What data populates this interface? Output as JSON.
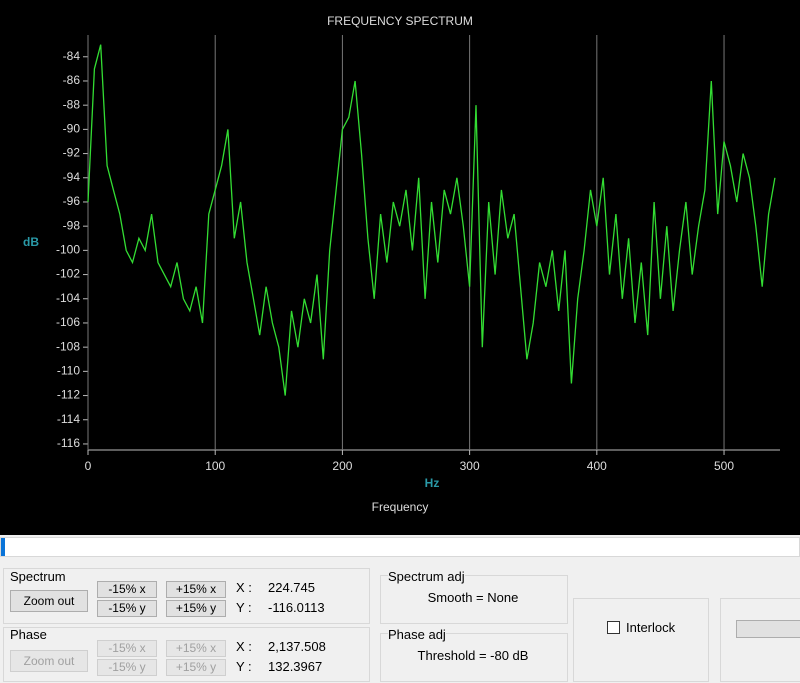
{
  "chart_data": {
    "type": "line",
    "title": "FREQUENCY SPECTRUM",
    "x_label": "Hz",
    "x_title": "Frequency",
    "y_label": "dB",
    "color": "#33dd33",
    "grid": true,
    "xlim": [
      0,
      544
    ],
    "xticks": [
      0,
      100,
      200,
      300,
      400,
      500
    ],
    "ylim": [
      -116.5,
      -82.2
    ],
    "yticks": [
      -84,
      -86,
      -88,
      -90,
      -92,
      -94,
      -96,
      -98,
      -100,
      -102,
      -104,
      -106,
      -108,
      -110,
      -112,
      -114,
      -116
    ],
    "x": [
      0,
      5,
      10,
      15,
      20,
      25,
      30,
      35,
      40,
      45,
      50,
      55,
      60,
      65,
      70,
      75,
      80,
      85,
      90,
      95,
      100,
      105,
      110,
      115,
      120,
      125,
      130,
      135,
      140,
      145,
      150,
      155,
      160,
      165,
      170,
      175,
      180,
      185,
      190,
      195,
      200,
      205,
      210,
      215,
      220,
      225,
      230,
      235,
      240,
      245,
      250,
      255,
      260,
      265,
      270,
      275,
      280,
      285,
      290,
      295,
      300,
      305,
      310,
      315,
      320,
      325,
      330,
      335,
      340,
      345,
      350,
      355,
      360,
      365,
      370,
      375,
      380,
      385,
      390,
      395,
      400,
      405,
      410,
      415,
      420,
      425,
      430,
      435,
      440,
      445,
      450,
      455,
      460,
      465,
      470,
      475,
      480,
      485,
      490,
      495,
      500,
      505,
      510,
      515,
      520,
      525,
      530,
      535,
      540
    ],
    "values": [
      -96,
      -85,
      -83,
      -93,
      -95,
      -97,
      -100,
      -101,
      -99,
      -100,
      -97,
      -101,
      -102,
      -103,
      -101,
      -104,
      -105,
      -103,
      -106,
      -97,
      -95,
      -93,
      -90,
      -99,
      -96,
      -101,
      -104,
      -107,
      -103,
      -106,
      -108,
      -112,
      -105,
      -108,
      -104,
      -106,
      -102,
      -109,
      -100,
      -95,
      -90,
      -89,
      -86,
      -92,
      -99,
      -104,
      -97,
      -101,
      -96,
      -98,
      -95,
      -100,
      -94,
      -104,
      -96,
      -101,
      -95,
      -97,
      -94,
      -98,
      -103,
      -88,
      -108,
      -96,
      -102,
      -95,
      -99,
      -97,
      -103,
      -109,
      -106,
      -101,
      -103,
      -100,
      -105,
      -100,
      -111,
      -104,
      -100,
      -95,
      -98,
      -94,
      -102,
      -97,
      -104,
      -99,
      -106,
      -101,
      -107,
      -96,
      -104,
      -98,
      -105,
      -100,
      -96,
      -102,
      -98,
      -95,
      -86,
      -97,
      -91,
      -93,
      -96,
      -92,
      -94,
      -98,
      -103,
      -97,
      -94
    ]
  },
  "ui": {
    "spectrum": {
      "label": "Spectrum",
      "zoom_out": "Zoom out",
      "minus_x": "-15% x",
      "plus_x": "+15% x",
      "minus_y": "-15% y",
      "plus_y": "+15% y",
      "x_label": "X :",
      "x_value": "224.745",
      "y_label": "Y :",
      "y_value": "-116.0113"
    },
    "phase": {
      "label": "Phase",
      "zoom_out": "Zoom out",
      "minus_x": "-15% x",
      "plus_x": "+15% x",
      "minus_y": "-15% y",
      "plus_y": "+15% y",
      "x_label": "X :",
      "x_value": "2,137.508",
      "y_label": "Y :",
      "y_value": "132.3967"
    },
    "spectrum_adj": {
      "label": "Spectrum adj",
      "smooth": "Smooth = None"
    },
    "phase_adj": {
      "label": "Phase adj",
      "threshold": "Threshold = -80 dB"
    },
    "interlock": "Interlock"
  }
}
